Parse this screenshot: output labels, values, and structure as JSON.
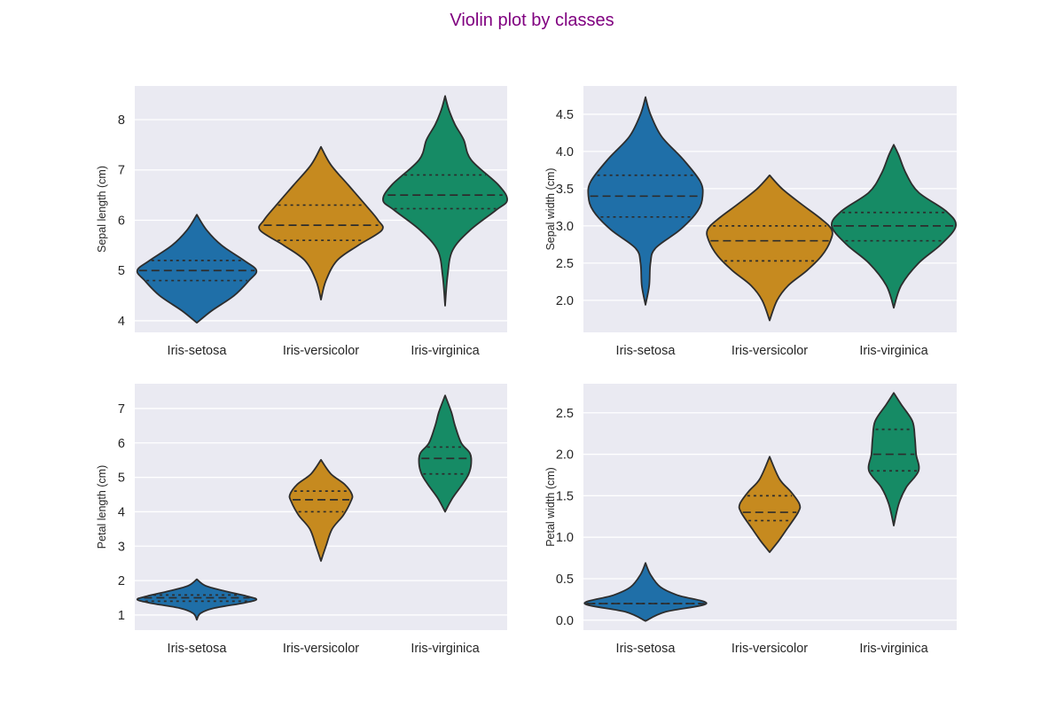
{
  "figure": {
    "title": "Violin plot by classes",
    "title_color": "#800080",
    "background": "#ffffff",
    "axes_background": "#eaeaf2",
    "grid_color": "#ffffff",
    "outline_color": "#2d2d2d",
    "species_colors": [
      "#1f6fa8",
      "#c68a1f",
      "#168b65"
    ]
  },
  "chart_data": [
    {
      "type": "violin",
      "ylabel": "Sepal length (cm)",
      "categories": [
        "Iris-setosa",
        "Iris-versicolor",
        "Iris-virginica"
      ],
      "ylim": [
        3.77,
        8.67
      ],
      "yticks": [
        4,
        5,
        6,
        7,
        8
      ],
      "grid": true,
      "violins": [
        {
          "category": "Iris-setosa",
          "min": 3.96,
          "max": 6.11,
          "q1": 4.8,
          "median": 5.0,
          "q3": 5.2,
          "density_width_max": 0.48,
          "profile": [
            [
              3.96,
              0.0
            ],
            [
              4.2,
              0.12
            ],
            [
              4.5,
              0.3
            ],
            [
              4.8,
              0.42
            ],
            [
              5.0,
              0.48
            ],
            [
              5.2,
              0.38
            ],
            [
              5.5,
              0.2
            ],
            [
              5.8,
              0.08
            ],
            [
              6.11,
              0.0
            ]
          ]
        },
        {
          "category": "Iris-versicolor",
          "min": 4.42,
          "max": 7.46,
          "q1": 5.6,
          "median": 5.9,
          "q3": 6.3,
          "density_width_max": 0.49,
          "profile": [
            [
              4.42,
              0.0
            ],
            [
              4.8,
              0.04
            ],
            [
              5.2,
              0.13
            ],
            [
              5.5,
              0.3
            ],
            [
              5.8,
              0.49
            ],
            [
              6.0,
              0.46
            ],
            [
              6.3,
              0.36
            ],
            [
              6.7,
              0.22
            ],
            [
              7.1,
              0.08
            ],
            [
              7.46,
              0.0
            ]
          ]
        },
        {
          "category": "Iris-virginica",
          "min": 4.3,
          "max": 8.47,
          "q1": 6.23,
          "median": 6.5,
          "q3": 6.9,
          "density_width_max": 0.5,
          "profile": [
            [
              4.3,
              0.0
            ],
            [
              4.9,
              0.02
            ],
            [
              5.4,
              0.06
            ],
            [
              5.8,
              0.2
            ],
            [
              6.2,
              0.41
            ],
            [
              6.4,
              0.5
            ],
            [
              6.7,
              0.43
            ],
            [
              7.2,
              0.21
            ],
            [
              7.6,
              0.15
            ],
            [
              7.9,
              0.08
            ],
            [
              8.2,
              0.03
            ],
            [
              8.47,
              0.0
            ]
          ]
        }
      ]
    },
    {
      "type": "violin",
      "ylabel": "Sepal width (cm)",
      "categories": [
        "Iris-setosa",
        "Iris-versicolor",
        "Iris-virginica"
      ],
      "ylim": [
        1.57,
        4.88
      ],
      "yticks": [
        2.0,
        2.5,
        3.0,
        3.5,
        4.0,
        4.5
      ],
      "grid": true,
      "violins": [
        {
          "category": "Iris-setosa",
          "min": 1.94,
          "max": 4.73,
          "q1": 3.12,
          "median": 3.4,
          "q3": 3.68,
          "density_width_max": 0.46,
          "profile": [
            [
              1.94,
              0.0
            ],
            [
              2.2,
              0.03
            ],
            [
              2.5,
              0.04
            ],
            [
              2.7,
              0.08
            ],
            [
              2.95,
              0.28
            ],
            [
              3.2,
              0.42
            ],
            [
              3.4,
              0.46
            ],
            [
              3.6,
              0.44
            ],
            [
              3.9,
              0.3
            ],
            [
              4.2,
              0.13
            ],
            [
              4.5,
              0.04
            ],
            [
              4.73,
              0.0
            ]
          ]
        },
        {
          "category": "Iris-versicolor",
          "min": 1.73,
          "max": 3.68,
          "q1": 2.53,
          "median": 2.8,
          "q3": 3.0,
          "density_width_max": 0.5,
          "profile": [
            [
              1.73,
              0.0
            ],
            [
              2.0,
              0.06
            ],
            [
              2.2,
              0.15
            ],
            [
              2.4,
              0.3
            ],
            [
              2.6,
              0.42
            ],
            [
              2.8,
              0.49
            ],
            [
              2.95,
              0.5
            ],
            [
              3.1,
              0.41
            ],
            [
              3.3,
              0.25
            ],
            [
              3.5,
              0.1
            ],
            [
              3.68,
              0.0
            ]
          ]
        },
        {
          "category": "Iris-virginica",
          "min": 1.9,
          "max": 4.09,
          "q1": 2.8,
          "median": 3.0,
          "q3": 3.18,
          "density_width_max": 0.5,
          "profile": [
            [
              1.9,
              0.0
            ],
            [
              2.2,
              0.06
            ],
            [
              2.5,
              0.2
            ],
            [
              2.75,
              0.38
            ],
            [
              3.0,
              0.5
            ],
            [
              3.2,
              0.42
            ],
            [
              3.45,
              0.2
            ],
            [
              3.7,
              0.1
            ],
            [
              3.95,
              0.04
            ],
            [
              4.09,
              0.0
            ]
          ]
        }
      ]
    },
    {
      "type": "violin",
      "ylabel": "Petal length (cm)",
      "categories": [
        "Iris-setosa",
        "Iris-versicolor",
        "Iris-virginica"
      ],
      "ylim": [
        0.56,
        7.72
      ],
      "yticks": [
        1,
        2,
        3,
        4,
        5,
        6,
        7
      ],
      "grid": true,
      "violins": [
        {
          "category": "Iris-setosa",
          "min": 0.86,
          "max": 2.04,
          "q1": 1.4,
          "median": 1.5,
          "q3": 1.58,
          "density_width_max": 0.48,
          "profile": [
            [
              0.86,
              0.0
            ],
            [
              1.05,
              0.03
            ],
            [
              1.2,
              0.14
            ],
            [
              1.35,
              0.38
            ],
            [
              1.45,
              0.48
            ],
            [
              1.55,
              0.4
            ],
            [
              1.7,
              0.22
            ],
            [
              1.85,
              0.07
            ],
            [
              2.04,
              0.0
            ]
          ]
        },
        {
          "category": "Iris-versicolor",
          "min": 2.57,
          "max": 5.51,
          "q1": 4.0,
          "median": 4.35,
          "q3": 4.6,
          "density_width_max": 0.25,
          "profile": [
            [
              2.57,
              0.0
            ],
            [
              3.0,
              0.04
            ],
            [
              3.5,
              0.09
            ],
            [
              3.9,
              0.18
            ],
            [
              4.3,
              0.24
            ],
            [
              4.5,
              0.25
            ],
            [
              4.8,
              0.19
            ],
            [
              5.1,
              0.08
            ],
            [
              5.51,
              0.0
            ]
          ]
        },
        {
          "category": "Iris-virginica",
          "min": 4.0,
          "max": 7.38,
          "q1": 5.1,
          "median": 5.55,
          "q3": 5.88,
          "density_width_max": 0.21,
          "profile": [
            [
              4.0,
              0.0
            ],
            [
              4.4,
              0.06
            ],
            [
              4.8,
              0.14
            ],
            [
              5.1,
              0.19
            ],
            [
              5.4,
              0.21
            ],
            [
              5.7,
              0.2
            ],
            [
              6.0,
              0.13
            ],
            [
              6.5,
              0.08
            ],
            [
              6.9,
              0.05
            ],
            [
              7.38,
              0.0
            ]
          ]
        }
      ]
    },
    {
      "type": "violin",
      "ylabel": "Petal width (cm)",
      "categories": [
        "Iris-setosa",
        "Iris-versicolor",
        "Iris-virginica"
      ],
      "ylim": [
        -0.12,
        2.85
      ],
      "yticks": [
        0.0,
        0.5,
        1.0,
        1.5,
        2.0,
        2.5
      ],
      "grid": true,
      "violins": [
        {
          "category": "Iris-setosa",
          "min": -0.01,
          "max": 0.69,
          "q1": 0.2,
          "median": 0.2,
          "q3": 0.2,
          "density_width_max": 0.49,
          "profile": [
            [
              -0.01,
              0.0
            ],
            [
              0.1,
              0.16
            ],
            [
              0.2,
              0.49
            ],
            [
              0.3,
              0.26
            ],
            [
              0.4,
              0.12
            ],
            [
              0.55,
              0.04
            ],
            [
              0.69,
              0.0
            ]
          ]
        },
        {
          "category": "Iris-versicolor",
          "min": 0.82,
          "max": 1.97,
          "q1": 1.2,
          "median": 1.3,
          "q3": 1.5,
          "density_width_max": 0.24,
          "profile": [
            [
              0.82,
              0.0
            ],
            [
              0.95,
              0.07
            ],
            [
              1.1,
              0.14
            ],
            [
              1.3,
              0.23
            ],
            [
              1.4,
              0.24
            ],
            [
              1.55,
              0.17
            ],
            [
              1.7,
              0.08
            ],
            [
              1.97,
              0.0
            ]
          ]
        },
        {
          "category": "Iris-virginica",
          "min": 1.14,
          "max": 2.74,
          "q1": 1.8,
          "median": 2.0,
          "q3": 2.3,
          "density_width_max": 0.21,
          "profile": [
            [
              1.14,
              0.0
            ],
            [
              1.4,
              0.04
            ],
            [
              1.6,
              0.1
            ],
            [
              1.8,
              0.2
            ],
            [
              2.0,
              0.18
            ],
            [
              2.2,
              0.17
            ],
            [
              2.4,
              0.15
            ],
            [
              2.6,
              0.06
            ],
            [
              2.74,
              0.0
            ]
          ]
        }
      ]
    }
  ]
}
